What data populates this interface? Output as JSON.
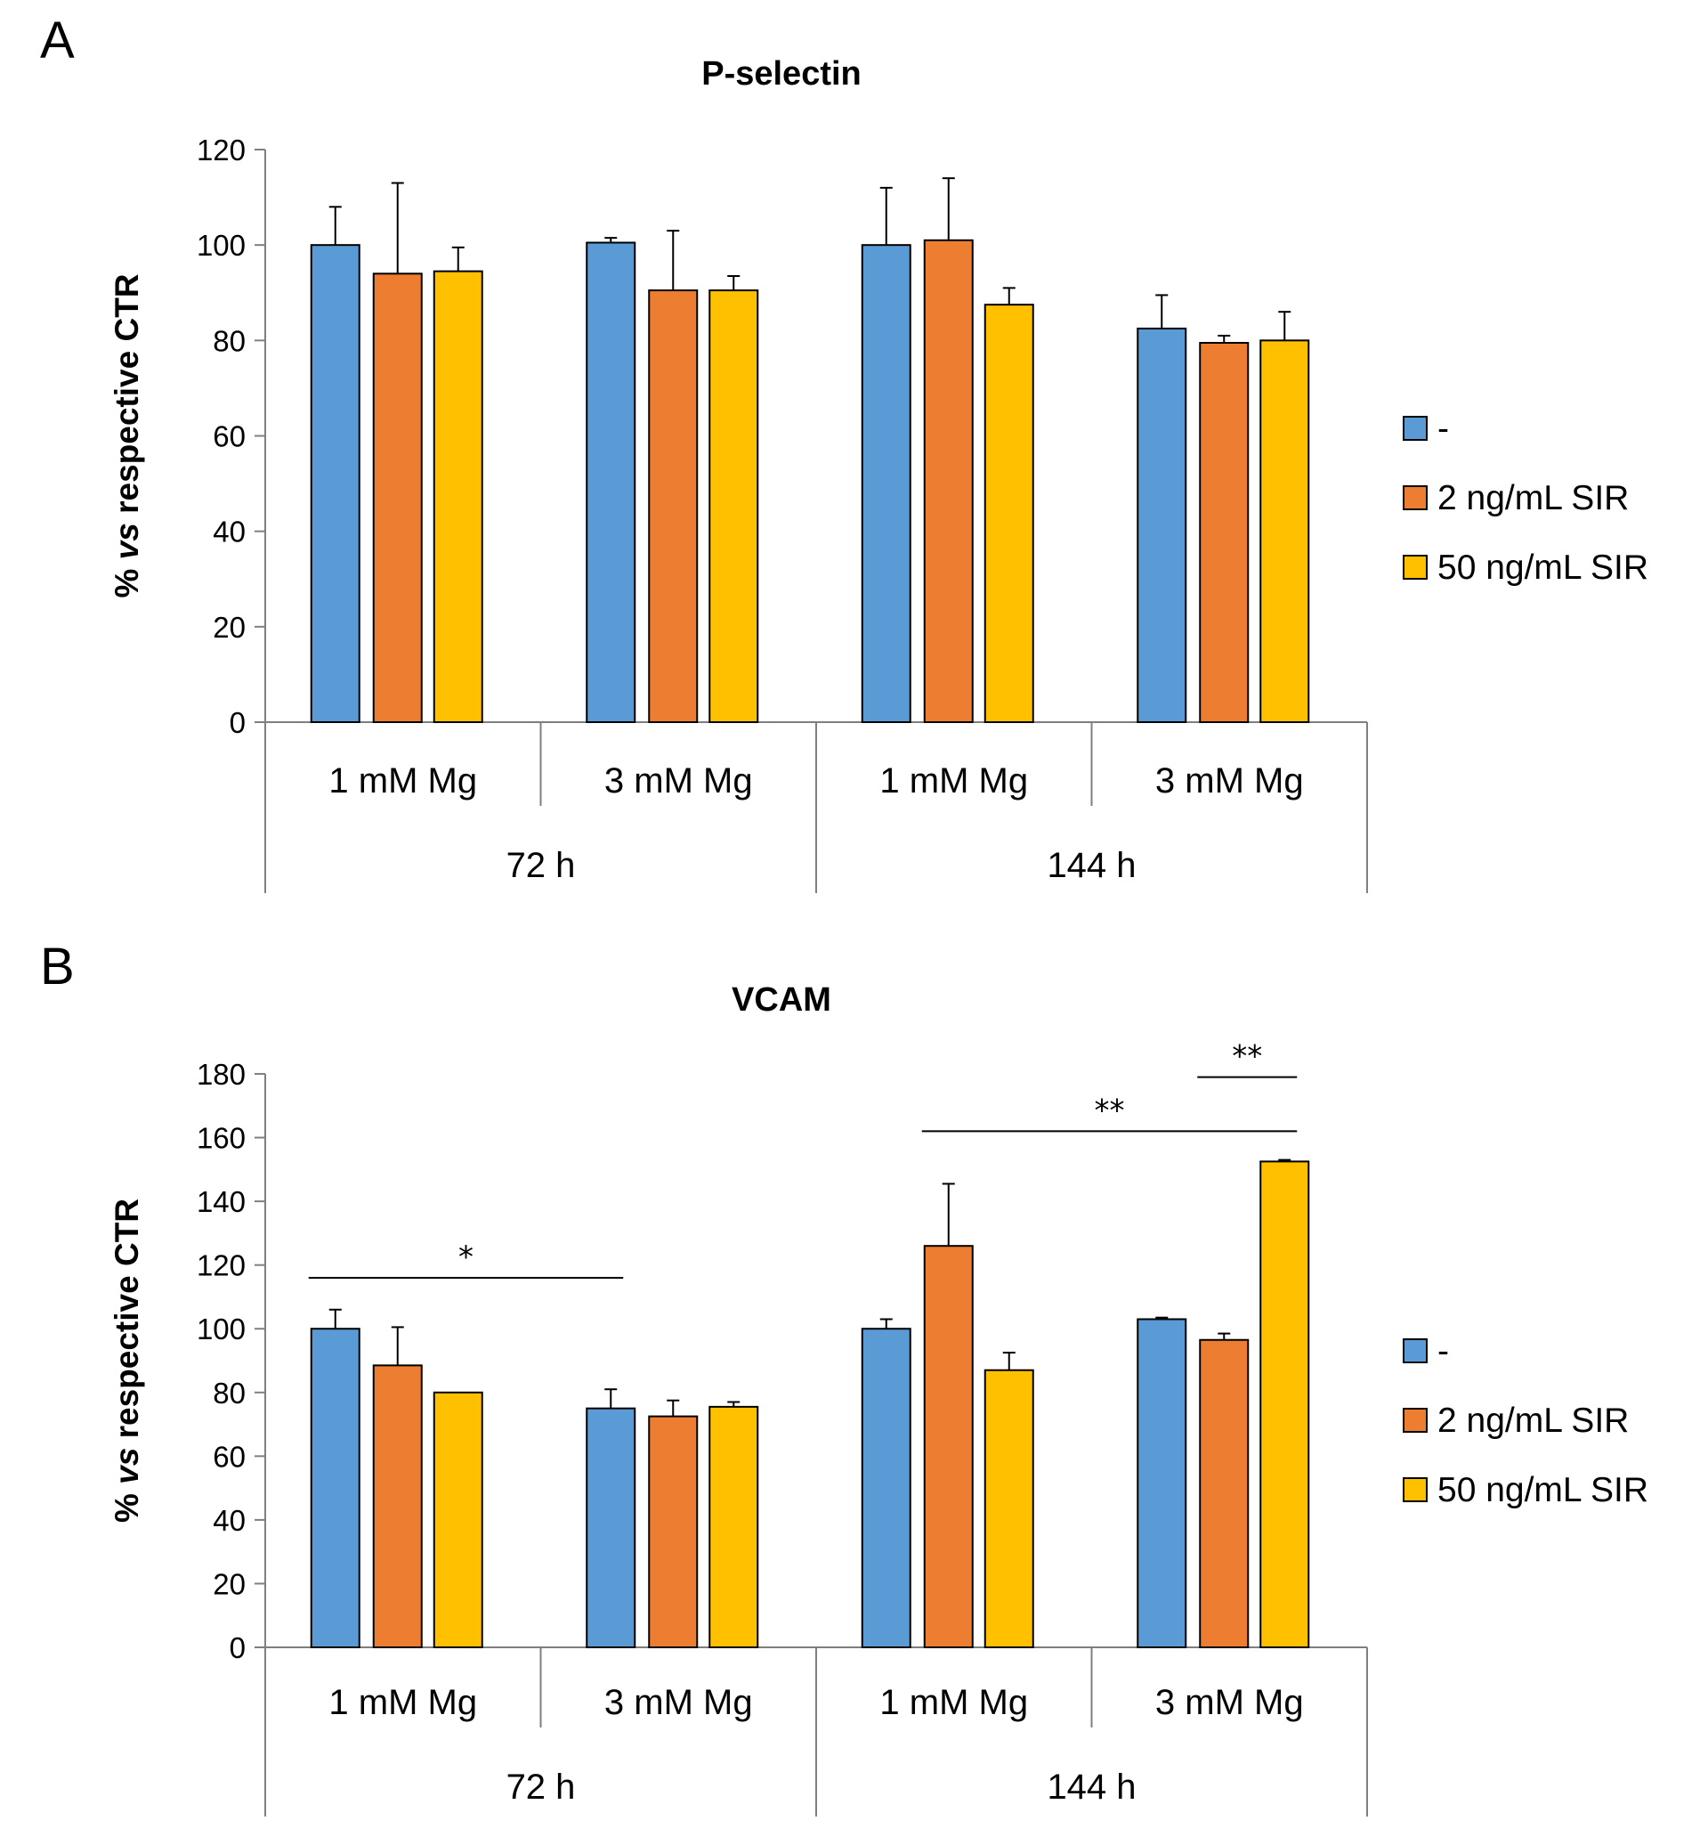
{
  "chart_data": [
    {
      "panel": "A",
      "type": "bar",
      "title": "P-selectin",
      "ylabel": "% vs respective CTR",
      "ylabel_prefix": "% ",
      "ylabel_italic": "vs",
      "ylabel_suffix": " respective CTR",
      "ylim": [
        0,
        120
      ],
      "yticks": [
        0,
        20,
        40,
        60,
        80,
        100,
        120
      ],
      "categories": [
        "1 mM Mg",
        "3 mM Mg",
        "1 mM Mg",
        "3 mM Mg"
      ],
      "groups": [
        "72 h",
        "144 h"
      ],
      "series": [
        {
          "name": "-",
          "values": [
            100,
            100.5,
            100,
            82.5
          ],
          "errors": [
            8,
            1,
            12,
            7
          ]
        },
        {
          "name": "2 ng/mL SIR",
          "values": [
            94,
            90.5,
            101,
            79.5
          ],
          "errors": [
            19,
            12.5,
            13,
            1.5
          ]
        },
        {
          "name": "50 ng/mL SIR",
          "values": [
            94.5,
            90.5,
            87.5,
            80
          ],
          "errors": [
            5,
            3,
            3.5,
            6
          ]
        }
      ],
      "annotations": []
    },
    {
      "panel": "B",
      "type": "bar",
      "title": "VCAM",
      "ylabel": "% vs respective CTR",
      "ylabel_prefix": "% ",
      "ylabel_italic": "vs",
      "ylabel_suffix": " respective CTR",
      "ylim": [
        0,
        180
      ],
      "yticks": [
        0,
        20,
        40,
        60,
        80,
        100,
        120,
        140,
        160,
        180
      ],
      "categories": [
        "1 mM Mg",
        "3 mM Mg",
        "1 mM Mg",
        "3 mM Mg"
      ],
      "groups": [
        "72 h",
        "144 h"
      ],
      "series": [
        {
          "name": "-",
          "values": [
            100,
            75,
            100,
            103
          ],
          "errors": [
            6,
            6,
            3,
            0.5
          ]
        },
        {
          "name": "2 ng/mL SIR",
          "values": [
            88.5,
            72.5,
            126,
            96.5
          ],
          "errors": [
            12,
            5,
            19.5,
            2
          ]
        },
        {
          "name": "50 ng/mL SIR",
          "values": [
            80,
            75.5,
            87,
            152.5
          ],
          "errors": [
            0,
            1.5,
            5.5,
            0.5
          ]
        }
      ],
      "annotations": [
        {
          "label": "*",
          "from": [
            0,
            0
          ],
          "to": [
            1,
            0
          ],
          "y": 116
        },
        {
          "label": "**",
          "from": [
            2,
            1
          ],
          "to": [
            3,
            2
          ],
          "y": 162
        },
        {
          "label": "**",
          "from": [
            3,
            1
          ],
          "to": [
            3,
            2
          ],
          "y": 179
        }
      ]
    }
  ],
  "colors": {
    "series": [
      "#5b9bd5",
      "#ed7d31",
      "#ffc000"
    ]
  }
}
